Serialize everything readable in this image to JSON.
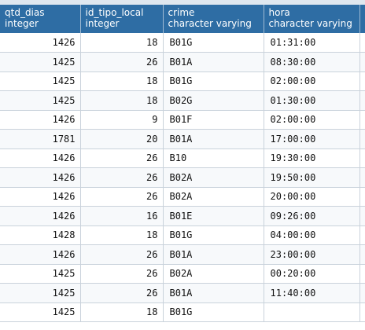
{
  "grid": {
    "columns": [
      {
        "name": "qtd_dias",
        "type": "integer"
      },
      {
        "name": "id_tipo_local",
        "type": "integer"
      },
      {
        "name": "crime",
        "type": "character varying"
      },
      {
        "name": "hora",
        "type": "character varying"
      }
    ],
    "rows": [
      [
        "1426",
        "18",
        "B01G",
        "01:31:00"
      ],
      [
        "1425",
        "26",
        "B01A",
        "08:30:00"
      ],
      [
        "1425",
        "18",
        "B01G",
        "02:00:00"
      ],
      [
        "1425",
        "18",
        "B02G",
        "01:30:00"
      ],
      [
        "1426",
        "9",
        "B01F",
        "02:00:00"
      ],
      [
        "1781",
        "20",
        "B01A",
        "17:00:00"
      ],
      [
        "1426",
        "26",
        "B10",
        "19:30:00"
      ],
      [
        "1426",
        "26",
        "B02A",
        "19:50:00"
      ],
      [
        "1426",
        "26",
        "B02A",
        "20:00:00"
      ],
      [
        "1426",
        "16",
        "B01E",
        "09:26:00"
      ],
      [
        "1428",
        "18",
        "B01G",
        "04:00:00"
      ],
      [
        "1426",
        "26",
        "B01A",
        "23:00:00"
      ],
      [
        "1425",
        "26",
        "B02A",
        "00:20:00"
      ],
      [
        "1425",
        "26",
        "B01A",
        "11:40:00"
      ],
      [
        "1425",
        "18",
        "B01G",
        ""
      ]
    ]
  }
}
